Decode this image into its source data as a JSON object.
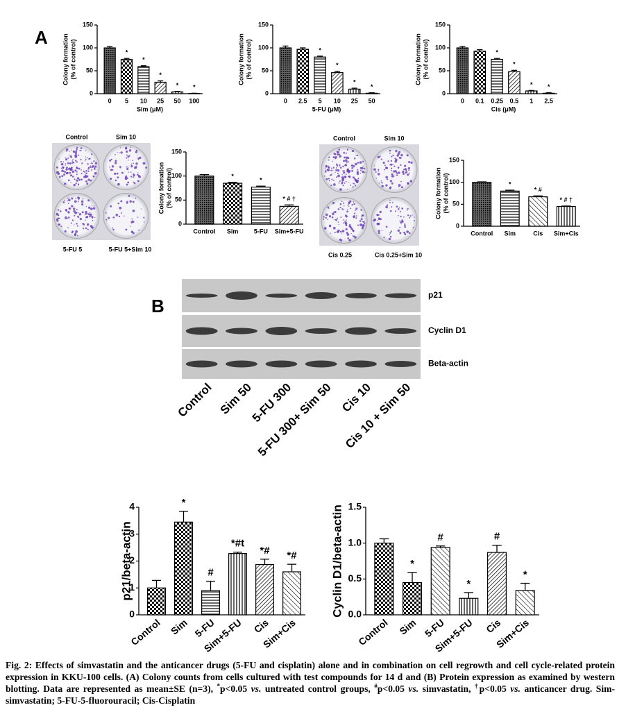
{
  "panel_labels": [
    "A",
    "B"
  ],
  "chart_data": [
    {
      "type": "bar",
      "categories": [
        "0",
        "5",
        "10",
        "25",
        "50",
        "100"
      ],
      "values": [
        100,
        75,
        59,
        25,
        4,
        0.5
      ],
      "errors": [
        3,
        2,
        2,
        3,
        1,
        0.5
      ],
      "annotations": [
        null,
        "*",
        "*",
        "*",
        "*",
        "*"
      ],
      "ylabel": [
        "Colony formation",
        "(% of control)"
      ],
      "xlabel": "Sim (μM)",
      "ylim": [
        0,
        150
      ],
      "yticks": [
        0,
        50,
        100,
        150
      ]
    },
    {
      "type": "bar",
      "categories": [
        "0",
        "2.5",
        "5",
        "10",
        "25",
        "50"
      ],
      "values": [
        100,
        97,
        80,
        46,
        10,
        1
      ],
      "errors": [
        4,
        3,
        2,
        3,
        2,
        1
      ],
      "annotations": [
        null,
        null,
        "*",
        "*",
        "*",
        "*"
      ],
      "ylabel": [
        "Colony formation",
        "(% of control)"
      ],
      "xlabel": "5-FU (μM)",
      "ylim": [
        0,
        150
      ],
      "yticks": [
        0,
        50,
        100,
        150
      ]
    },
    {
      "type": "bar",
      "categories": [
        "0",
        "0.1",
        "0.25",
        "0.5",
        "1",
        "2.5"
      ],
      "values": [
        100,
        93,
        75,
        48,
        6,
        1
      ],
      "errors": [
        3,
        3,
        2,
        3,
        1,
        1
      ],
      "annotations": [
        null,
        null,
        "*",
        "*",
        "*",
        "*"
      ],
      "ylabel": [
        "Colony formation",
        "(% of control)"
      ],
      "xlabel": "Cis (μM)",
      "ylim": [
        0,
        150
      ],
      "yticks": [
        0,
        50,
        100,
        150
      ]
    },
    {
      "type": "bar",
      "categories": [
        "Control",
        "Sim",
        "5-FU",
        "Sim+5-FU"
      ],
      "values": [
        100,
        85,
        77,
        37
      ],
      "errors": [
        3,
        2,
        2,
        3
      ],
      "annotations": [
        null,
        "*",
        "*",
        "* # †"
      ],
      "ylabel": [
        "Colony formation",
        "(% of control)"
      ],
      "ylim": [
        0,
        150
      ],
      "yticks": [
        0,
        50,
        100,
        150
      ]
    },
    {
      "type": "bar",
      "categories": [
        "Control",
        "Sim",
        "Cis",
        "Sim+Cis"
      ],
      "values": [
        100,
        80,
        67,
        45
      ],
      "errors": [
        1,
        2,
        2,
        1
      ],
      "annotations": [
        null,
        "*",
        "* #",
        "* # †"
      ],
      "ylabel": [
        "Colony formation",
        "(% of control)"
      ],
      "ylim": [
        0,
        150
      ],
      "yticks": [
        0,
        50,
        100,
        150
      ]
    },
    {
      "type": "bar",
      "categories": [
        "Control",
        "Sim",
        "5-FU",
        "Sim+5-FU",
        "Cis",
        "Sim+Cis"
      ],
      "values": [
        1.0,
        3.45,
        0.9,
        2.28,
        1.87,
        1.6
      ],
      "errors": [
        0.28,
        0.4,
        0.35,
        0.05,
        0.2,
        0.28
      ],
      "annotations": [
        null,
        "*",
        "#",
        "*#t",
        "*#",
        "*#"
      ],
      "ylabel": "p21/beta-actin",
      "ylim": [
        0,
        4
      ],
      "yticks": [
        0,
        1,
        2,
        3,
        4
      ]
    },
    {
      "type": "bar",
      "categories": [
        "Control",
        "Sim",
        "5-FU",
        "Sim+5-FU",
        "Cis",
        "Sim+Cis"
      ],
      "values": [
        1.0,
        0.45,
        0.94,
        0.23,
        0.87,
        0.34
      ],
      "errors": [
        0.06,
        0.14,
        0.02,
        0.08,
        0.1,
        0.1
      ],
      "annotations": [
        null,
        "*",
        "#",
        "*",
        "#",
        "*"
      ],
      "ylabel": "Cyclin D1/beta-actin",
      "ylim": [
        0,
        1.5
      ],
      "yticks": [
        {
          "value": 0,
          "label": "0.0"
        },
        {
          "value": 0.5,
          "label": "0.5"
        },
        {
          "value": 1,
          "label": "1.0"
        },
        {
          "value": 1.5,
          "label": "1.5"
        }
      ]
    }
  ],
  "plates": [
    {
      "top": [
        "Control",
        "Sim 10"
      ],
      "bottom": [
        "5-FU 5",
        "5-FU 5+Sim 10"
      ]
    },
    {
      "top": [
        "Control",
        "Sim 10"
      ],
      "bottom": [
        "Cis 0.25",
        "Cis 0.25+Sim 10"
      ]
    }
  ],
  "blot": {
    "proteins": [
      "p21",
      "Cyclin D1",
      "Beta-actin"
    ],
    "lanes": [
      "Control",
      "Sim 50",
      "5-FU 300",
      "5-FU 300+ Sim 50",
      "Cis 10",
      "Cis 10 + Sim 50"
    ]
  },
  "caption": [
    "Fig. 2: Effects of simvastatin and the anticancer drugs (5-FU and cisplatin) alone and in combination on cell regrowth and cell cycle-related protein expression in KKU-100 cells. (A) Colony counts from cells cultured with test compounds for 14 d and (B) Protein expression as examined by western blotting. Data are represented as mean±SE (n=3), ",
    "*",
    "p<0.05 ",
    "vs.",
    " untreated control groups, ",
    "#",
    "p<0.05 ",
    "vs.",
    " simvastatin, ",
    "†",
    "p<0.05 ",
    "vs.",
    " anticancer drug. Sim-simvastatin; 5-FU-5-fluorouracil; Cis-Cisplatin"
  ]
}
